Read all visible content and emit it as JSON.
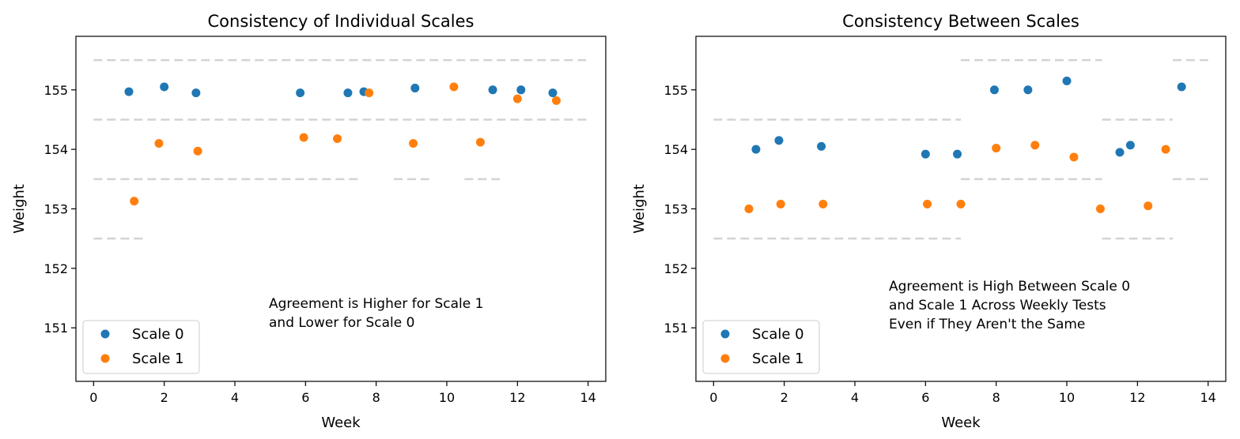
{
  "colors": {
    "series0": "#1f77b4",
    "series1": "#ff7f0e",
    "guide": "#d3d3d3"
  },
  "chart_data": [
    {
      "type": "scatter",
      "title": "Consistency of Individual Scales",
      "xlabel": "Week",
      "ylabel": "Weight",
      "xlim": [
        -0.5,
        14.5
      ],
      "ylim": [
        150.1,
        155.9
      ],
      "xticks": [
        "0",
        "2",
        "4",
        "6",
        "8",
        "10",
        "12",
        "14"
      ],
      "yticks": [
        "151",
        "152",
        "153",
        "154",
        "155"
      ],
      "legend": "lower-left",
      "annotation": [
        "Agreement is Higher for Scale 1",
        "and Lower for Scale 0"
      ],
      "series": [
        {
          "name": "Scale 0",
          "x": [
            1.0,
            2.0,
            2.9,
            5.85,
            7.2,
            7.65,
            9.1,
            11.3,
            12.1,
            13.0
          ],
          "y": [
            154.97,
            155.05,
            154.95,
            154.95,
            154.95,
            154.97,
            155.03,
            155.0,
            155.0,
            154.95
          ]
        },
        {
          "name": "Scale 1",
          "x": [
            1.15,
            1.85,
            2.95,
            5.95,
            6.9,
            7.8,
            9.05,
            10.2,
            10.95,
            12.0,
            13.1
          ],
          "y": [
            153.13,
            154.1,
            153.97,
            154.2,
            154.18,
            154.95,
            154.1,
            155.05,
            154.12,
            154.85,
            154.82
          ]
        }
      ],
      "guides": [
        {
          "y": 155.5,
          "x": [
            0,
            14
          ]
        },
        {
          "y": 154.5,
          "x": [
            0,
            14
          ]
        },
        {
          "y": 153.5,
          "x": [
            0,
            7.5
          ]
        },
        {
          "y": 153.5,
          "x": [
            8.5,
            9.5
          ]
        },
        {
          "y": 153.5,
          "x": [
            10.5,
            11.5
          ]
        },
        {
          "y": 152.5,
          "x": [
            0,
            1.5
          ]
        }
      ]
    },
    {
      "type": "scatter",
      "title": "Consistency Between Scales",
      "xlabel": "Week",
      "ylabel": "Weight",
      "xlim": [
        -0.5,
        14.5
      ],
      "ylim": [
        150.1,
        155.9
      ],
      "xticks": [
        "0",
        "2",
        "4",
        "6",
        "8",
        "10",
        "12",
        "14"
      ],
      "yticks": [
        "151",
        "152",
        "153",
        "154",
        "155"
      ],
      "legend": "lower-left",
      "annotation": [
        "Agreement is High Between Scale 0",
        "and Scale 1 Across Weekly Tests",
        "Even if They Aren't the Same"
      ],
      "series": [
        {
          "name": "Scale 0",
          "x": [
            1.2,
            1.85,
            3.05,
            6.0,
            6.9,
            7.95,
            8.9,
            10.0,
            11.5,
            11.8,
            13.25
          ],
          "y": [
            154.0,
            154.15,
            154.05,
            153.92,
            153.92,
            155.0,
            155.0,
            155.15,
            153.95,
            154.07,
            155.05
          ]
        },
        {
          "name": "Scale 1",
          "x": [
            1.0,
            1.9,
            3.1,
            6.05,
            7.0,
            8.0,
            9.1,
            10.2,
            10.95,
            12.3,
            12.8
          ],
          "y": [
            153.0,
            153.08,
            153.08,
            153.08,
            153.08,
            154.02,
            154.07,
            153.87,
            153.0,
            153.05,
            154.0
          ]
        }
      ],
      "guides": [
        {
          "y": 154.5,
          "x": [
            0,
            7
          ]
        },
        {
          "y": 152.5,
          "x": [
            0,
            7
          ]
        },
        {
          "y": 155.5,
          "x": [
            7,
            11
          ]
        },
        {
          "y": 153.5,
          "x": [
            7,
            11
          ]
        },
        {
          "y": 154.5,
          "x": [
            11,
            13
          ]
        },
        {
          "y": 152.5,
          "x": [
            11,
            13
          ]
        },
        {
          "y": 155.5,
          "x": [
            13,
            14
          ]
        },
        {
          "y": 153.5,
          "x": [
            13,
            14
          ]
        }
      ]
    }
  ]
}
